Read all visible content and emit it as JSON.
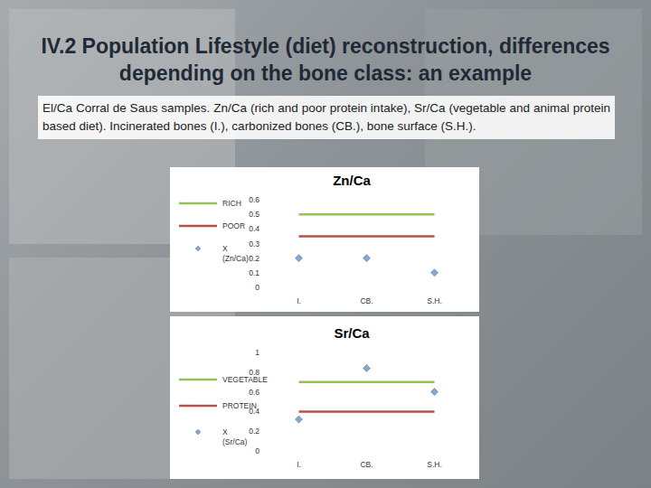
{
  "slide": {
    "title": "IV.2 Population Lifestyle (diet) reconstruction, differences depending on the bone class: an example",
    "text": "El/Ca Corral de Saus samples. Zn/Ca (rich and poor protein intake), Sr/Ca (vegetable and animal protein based diet). Incinerated bones (I.), carbonized bones (CB.), bone surface (S.H.)."
  },
  "chart_data": [
    {
      "type": "line",
      "title": "Zn/Ca",
      "categories": [
        "I.",
        "CB.",
        "S.H."
      ],
      "series": [
        {
          "name": "RICH",
          "color": "#92c353",
          "type": "line",
          "values": [
            0.5,
            0.5,
            0.5
          ]
        },
        {
          "name": "POOR",
          "color": "#b5504c",
          "type": "line",
          "values": [
            0.35,
            0.35,
            0.35
          ]
        },
        {
          "name": "X (Zn/Ca)",
          "color": "#7ea9d9",
          "type": "scatter",
          "marker": "diamond",
          "values": [
            0.2,
            0.2,
            0.1
          ]
        }
      ],
      "ylim": [
        0,
        0.6
      ],
      "yticks": [
        0,
        0.1,
        0.2,
        0.3,
        0.4,
        0.5,
        0.6
      ],
      "grid": false,
      "legend": "left"
    },
    {
      "type": "line",
      "title": "Sr/Ca",
      "categories": [
        "I.",
        "CB.",
        "S.H."
      ],
      "series": [
        {
          "name": "VEGETABLE",
          "color": "#92c353",
          "type": "line",
          "values": [
            0.7,
            0.7,
            0.7
          ]
        },
        {
          "name": "PROTEIN",
          "color": "#b5504c",
          "type": "line",
          "values": [
            0.4,
            0.4,
            0.4
          ]
        },
        {
          "name": "X (Sr/Ca)",
          "color": "#7ea9d9",
          "type": "scatter",
          "marker": "diamond",
          "values": [
            0.32,
            0.84,
            0.6
          ]
        }
      ],
      "ylim": [
        0,
        1
      ],
      "yticks": [
        0,
        0.2,
        0.4,
        0.6,
        0.8,
        1
      ],
      "grid": false,
      "legend": "left"
    }
  ]
}
